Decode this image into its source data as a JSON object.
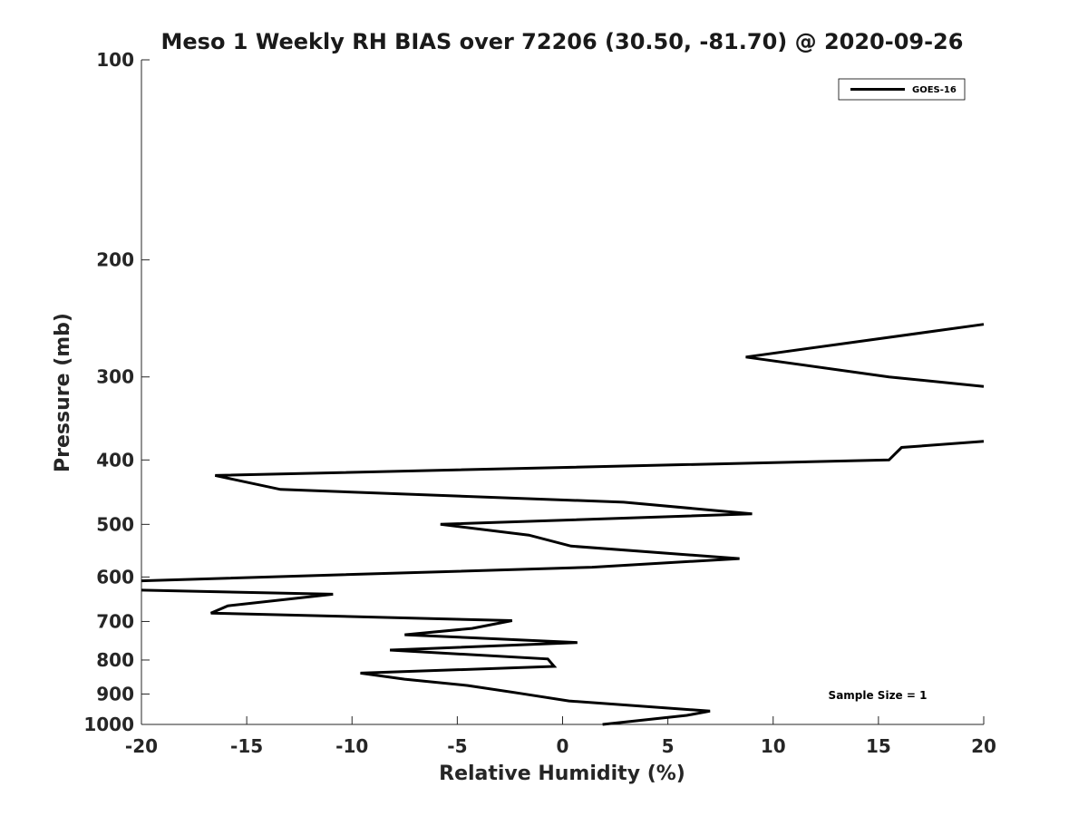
{
  "chart_data": {
    "type": "line",
    "title": "Meso 1 Weekly RH BIAS over 72206 (30.50, -81.70) @ 2020-09-26",
    "xlabel": "Relative Humidity (%)",
    "ylabel": "Pressure (mb)",
    "xlim": [
      -20,
      20
    ],
    "ylim": [
      100,
      1000
    ],
    "y_scale": "log",
    "y_reversed": true,
    "x_ticks": [
      -20,
      -15,
      -10,
      -5,
      0,
      5,
      10,
      15,
      20
    ],
    "x_tick_labels": [
      "-20",
      "-15",
      "-10",
      "-5",
      "0",
      "5",
      "10",
      "15",
      "20"
    ],
    "y_ticks": [
      100,
      200,
      300,
      400,
      500,
      600,
      700,
      800,
      900,
      1000
    ],
    "y_tick_labels": [
      "100",
      "200",
      "300",
      "400",
      "500",
      "600",
      "700",
      "800",
      "900",
      "1000"
    ],
    "grid": false,
    "legend_position": "top-right",
    "annotation": "Sample Size = 1",
    "series": [
      {
        "name": "GOES-16",
        "color": "#000000",
        "segments": [
          {
            "x": [
              20,
              8.7,
              15.5,
              20
            ],
            "y": [
              250,
              280,
              300,
              310
            ]
          },
          {
            "x": [
              20,
              16.1,
              15.5,
              -16.5,
              -13.4,
              2.9,
              9.0,
              -5.8,
              -1.6,
              0.4,
              8.4,
              1.4,
              -20
            ],
            "y": [
              375,
              383,
              400,
              422,
              443,
              463,
              482,
              500,
              519,
              539,
              563,
              580,
              608
            ]
          },
          {
            "x": [
              -20,
              -10.9,
              -15.9,
              -16.7,
              -2.4,
              -4.3,
              -7.5,
              0.7,
              -8.2,
              -0.7,
              -0.4,
              -9.6,
              -7.5,
              -4.5,
              -2.0,
              0.3,
              7.0,
              5.9,
              1.9
            ],
            "y": [
              628,
              637,
              663,
              680,
              698,
              717,
              733,
              753,
              773,
              797,
              818,
              837,
              855,
              874,
              898,
              922,
              955,
              969,
              1000
            ]
          }
        ]
      }
    ]
  }
}
